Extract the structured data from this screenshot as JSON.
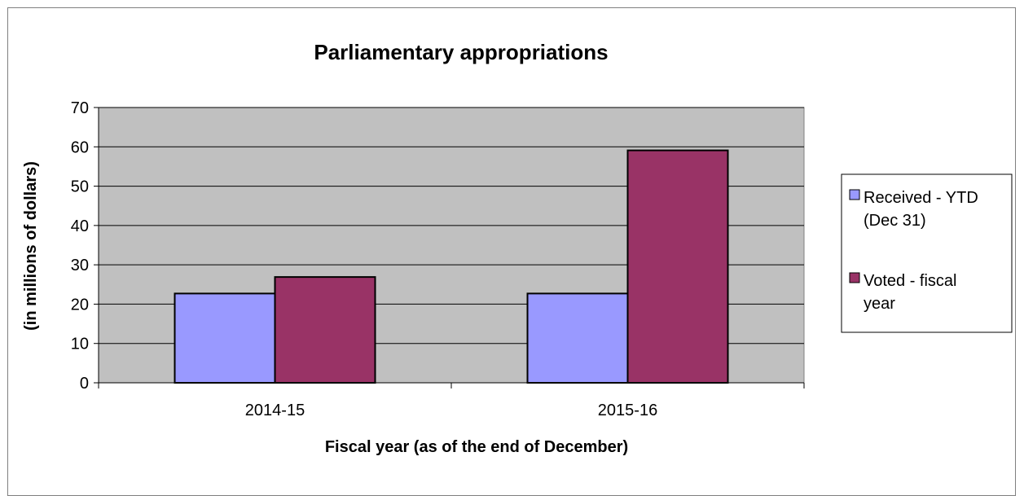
{
  "chart_data": {
    "type": "bar",
    "title": "Parliamentary appropriations",
    "xlabel": "Fiscal year (as of the end of December)",
    "ylabel": "(in millions of dollars)",
    "categories": [
      "2014-15",
      "2015-16"
    ],
    "series": [
      {
        "name": "Received - YTD (Dec 31)",
        "name_lines": [
          "Received - YTD",
          "(Dec 31)"
        ],
        "values": [
          22.7,
          22.7
        ],
        "color": "#9999ff"
      },
      {
        "name": "Voted - fiscal year",
        "name_lines": [
          "Voted - fiscal",
          "year"
        ],
        "values": [
          26.9,
          59.1
        ],
        "color": "#993366"
      }
    ],
    "ylim": [
      0,
      70
    ],
    "yticks": [
      0,
      10,
      20,
      30,
      40,
      50,
      60,
      70
    ],
    "grid": true,
    "plot_background": "#c0c0c0",
    "legend_position": "right"
  }
}
